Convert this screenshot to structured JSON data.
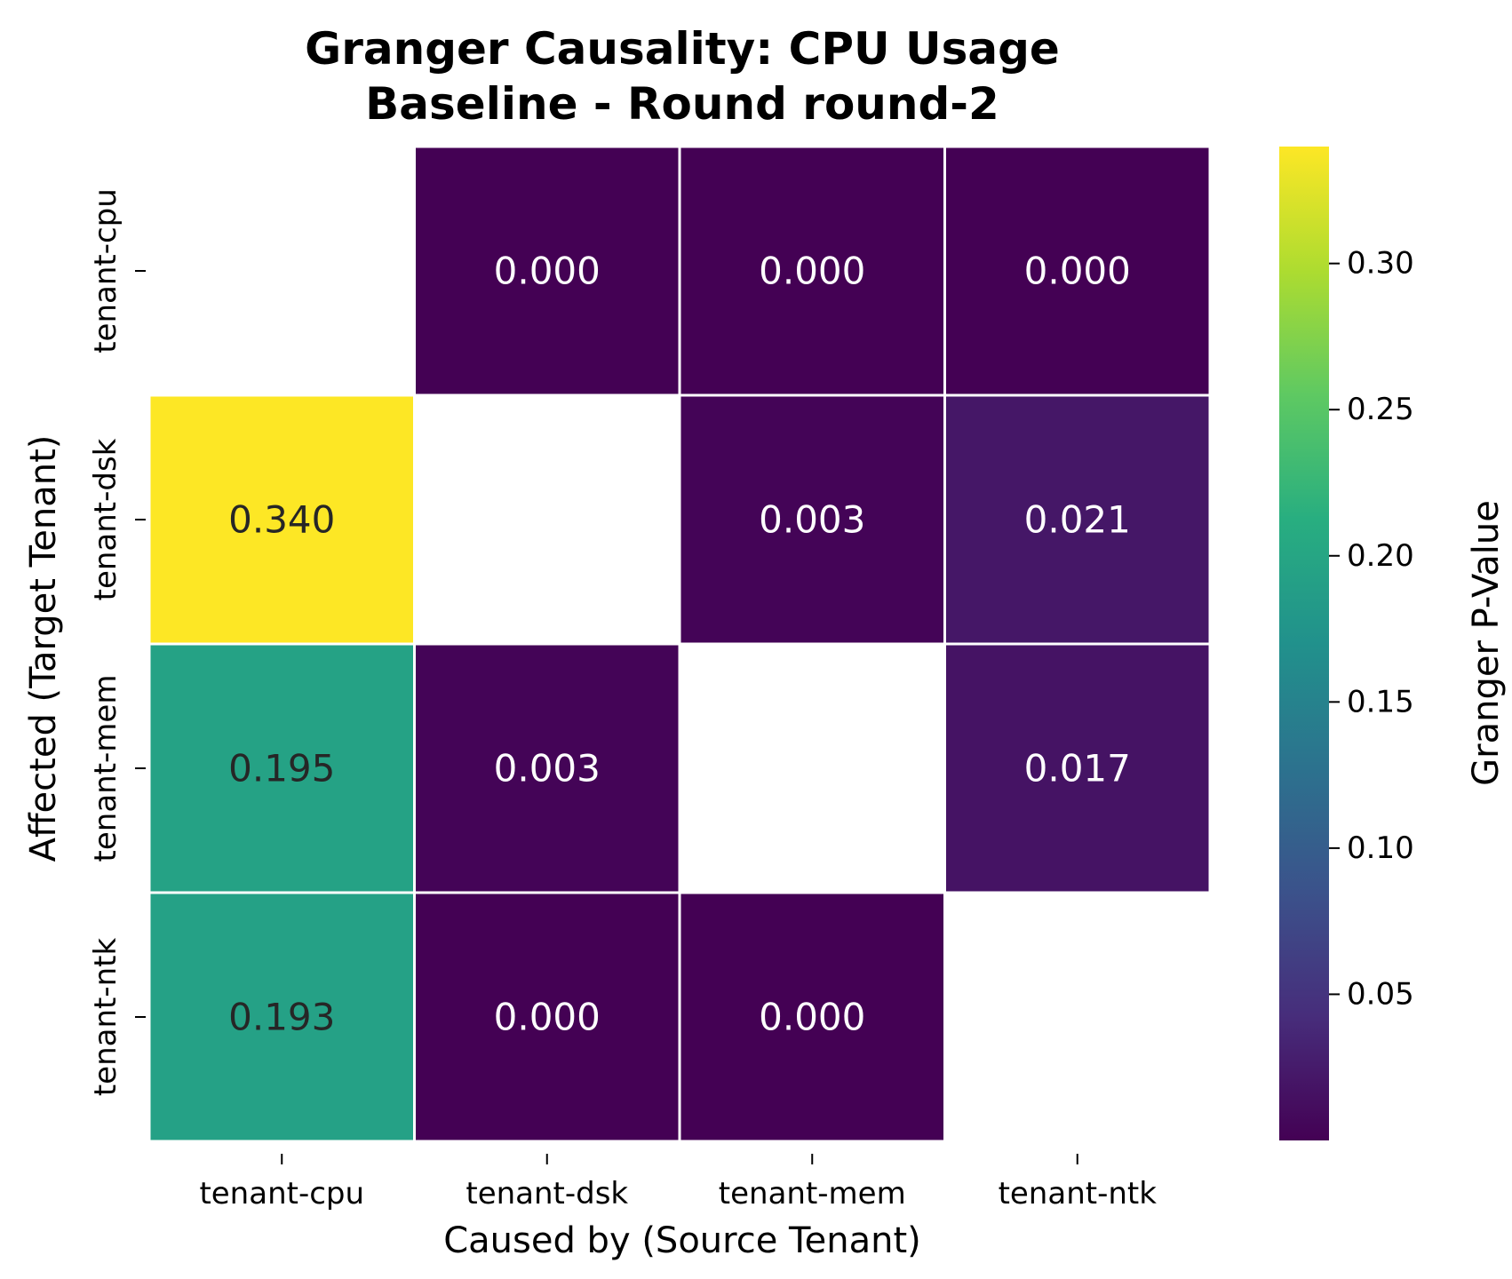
{
  "chart_data": {
    "type": "heatmap",
    "title": [
      "Granger Causality: CPU Usage",
      "Baseline - Round round-2"
    ],
    "xlabel": "Caused by (Source Tenant)",
    "ylabel": "Affected (Target Tenant)",
    "x_categories": [
      "tenant-cpu",
      "tenant-dsk",
      "tenant-mem",
      "tenant-ntk"
    ],
    "y_categories": [
      "tenant-cpu",
      "tenant-dsk",
      "tenant-mem",
      "tenant-ntk"
    ],
    "values": [
      [
        null,
        0.0,
        0.0,
        0.0
      ],
      [
        0.34,
        null,
        0.003,
        0.021
      ],
      [
        0.195,
        0.003,
        null,
        0.017
      ],
      [
        0.193,
        0.0,
        0.0,
        null
      ]
    ],
    "value_format": "3 decimals",
    "colormap": "viridis",
    "colorbar": {
      "label": "Granger P-Value",
      "range": [
        0.0,
        0.34
      ],
      "ticks": [
        "0.05",
        "0.10",
        "0.15",
        "0.20",
        "0.25",
        "0.30"
      ]
    },
    "colors": {
      "low": "#440154",
      "high": "#fde725",
      "mid_green": "#20a386",
      "grid_lines": "#ffffff"
    },
    "grid": false,
    "masked_diagonal": true
  }
}
